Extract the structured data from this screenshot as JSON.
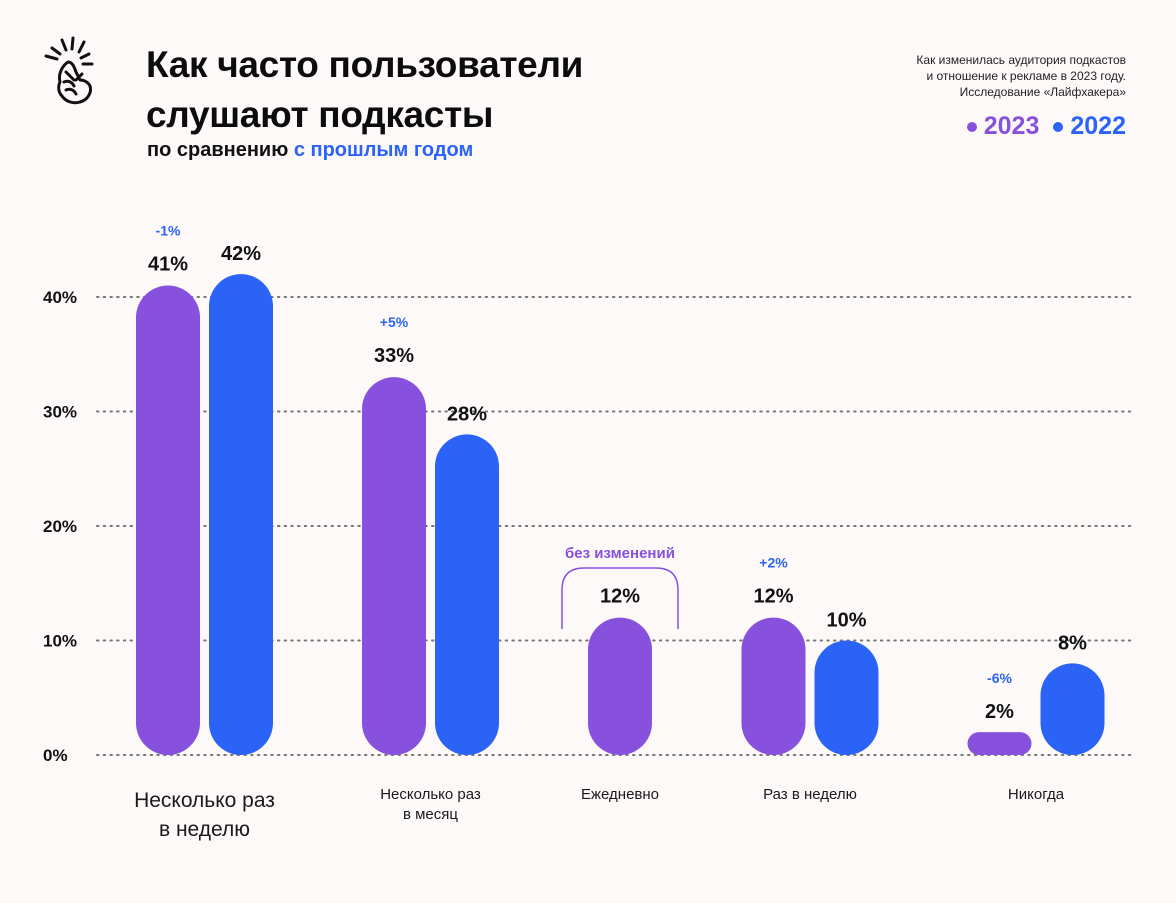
{
  "header": {
    "title_line1": "Как часто пользователи",
    "title_line2": "слушают подкасты",
    "subtitle_plain": "по сравнению ",
    "subtitle_accent": "с прошлым годом",
    "logo_icon": "snapping-fingers-icon"
  },
  "source": {
    "line1": "Как изменилась аудитория подкастов",
    "line2": "и отношение к рекламе в 2023 году.",
    "line3": "Исследование «Лайфхакера»"
  },
  "colors": {
    "series_2023": "#8750dd",
    "series_2022": "#2a63f5",
    "background": "#fcf9f8",
    "gridline": "#777777",
    "value_label": "#111111"
  },
  "chart_data": {
    "type": "bar",
    "title": "Как часто пользователи слушают подкасты",
    "subtitle": "по сравнению с прошлым годом",
    "xlabel": "",
    "ylabel": "",
    "ylim": [
      0,
      42
    ],
    "yticks": [
      0,
      10,
      20,
      30,
      40
    ],
    "ytick_labels": [
      "0%",
      "10%",
      "20%",
      "30%",
      "40%"
    ],
    "grid": true,
    "grid_style": "dotted",
    "legend_position": "top-right",
    "categories": [
      "Несколько раз в неделю",
      "Несколько раз в месяц",
      "Ежедневно",
      "Раз в неделю",
      "Никогда"
    ],
    "category_lines": [
      [
        "Несколько раз",
        "в неделю"
      ],
      [
        "Несколько раз",
        "в месяц"
      ],
      [
        "Ежедневно"
      ],
      [
        "Раз в неделю"
      ],
      [
        "Никогда"
      ]
    ],
    "series": [
      {
        "name": "2023",
        "values": [
          41,
          33,
          12,
          12,
          2
        ],
        "labels": [
          "41%",
          "33%",
          "12%",
          "12%",
          "2%"
        ]
      },
      {
        "name": "2022",
        "values": [
          42,
          28,
          null,
          10,
          8
        ],
        "labels": [
          "42%",
          "28%",
          "",
          "10%",
          "8%"
        ]
      }
    ],
    "changes": [
      "-1%",
      "+5%",
      "без изменений",
      "+2%",
      "-6%"
    ],
    "unchanged_category_index": 2
  }
}
